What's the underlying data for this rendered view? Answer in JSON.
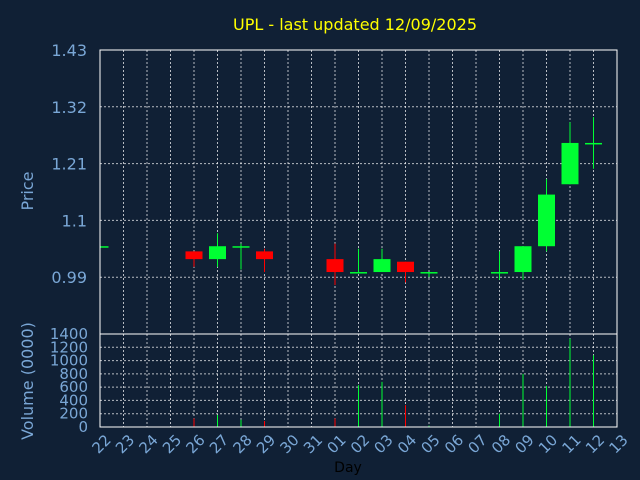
{
  "chart_data": {
    "type": "candlestick",
    "title": "UPL - last updated 12/09/2025",
    "xlabel": "Day",
    "ylabel": "Price",
    "volume_label": "Volume (0000)",
    "categories": [
      "22",
      "23",
      "24",
      "25",
      "26",
      "27",
      "28",
      "29",
      "30",
      "31",
      "01",
      "02",
      "03",
      "04",
      "05",
      "06",
      "07",
      "08",
      "09",
      "10",
      "11",
      "12",
      "13"
    ],
    "price_ticks": [
      "1.43",
      "1.32",
      "1.21",
      "1.1",
      "0.99"
    ],
    "price_tick_values": [
      1.43,
      1.32,
      1.21,
      1.1,
      0.99
    ],
    "price_range": [
      0.88,
      1.43
    ],
    "volume_ticks": [
      0,
      200,
      400,
      600,
      800,
      1000,
      1200,
      1400
    ],
    "volume_range": [
      0,
      1400
    ],
    "grid": true,
    "candles": [
      {
        "x": 0.0,
        "open": 1.05,
        "close": 1.05,
        "high": 1.05,
        "low": 1.05,
        "volume": 0
      },
      {
        "x": 4.0,
        "open": 1.04,
        "close": 1.025,
        "high": 1.04,
        "low": 1.01,
        "volume": 130
      },
      {
        "x": 5.0,
        "open": 1.025,
        "close": 1.05,
        "high": 1.075,
        "low": 1.01,
        "volume": 180
      },
      {
        "x": 6.0,
        "open": 1.05,
        "close": 1.05,
        "high": 1.055,
        "low": 1.005,
        "volume": 110
      },
      {
        "x": 7.0,
        "open": 1.04,
        "close": 1.025,
        "high": 1.045,
        "low": 1.0,
        "volume": 90
      },
      {
        "x": 10.0,
        "open": 1.025,
        "close": 1.0,
        "high": 1.055,
        "low": 0.975,
        "volume": 130
      },
      {
        "x": 11.0,
        "open": 1.0,
        "close": 1.0,
        "high": 1.045,
        "low": 1.0,
        "volume": 630
      },
      {
        "x": 12.0,
        "open": 1.0,
        "close": 1.025,
        "high": 1.045,
        "low": 1.0,
        "volume": 680
      },
      {
        "x": 13.0,
        "open": 1.02,
        "close": 1.0,
        "high": 1.02,
        "low": 0.98,
        "volume": 330
      },
      {
        "x": 14.0,
        "open": 1.0,
        "close": 1.0,
        "high": 1.0,
        "low": 0.99,
        "volume": 20
      },
      {
        "x": 17.0,
        "open": 1.0,
        "close": 1.0,
        "high": 1.04,
        "low": 0.985,
        "volume": 200
      },
      {
        "x": 18.0,
        "open": 1.0,
        "close": 1.05,
        "high": 1.05,
        "low": 0.985,
        "volume": 800
      },
      {
        "x": 19.0,
        "open": 1.05,
        "close": 1.15,
        "high": 1.18,
        "low": 1.04,
        "volume": 620
      },
      {
        "x": 20.0,
        "open": 1.17,
        "close": 1.25,
        "high": 1.29,
        "low": 1.17,
        "volume": 1330
      },
      {
        "x": 21.0,
        "open": 1.25,
        "close": 1.25,
        "high": 1.3,
        "low": 1.2,
        "volume": 1080
      }
    ],
    "colors": {
      "background": "#102035",
      "up": "#00ff33",
      "down": "#ff0000",
      "grid": "#ffffff",
      "axis_text": "#7aa7d6",
      "title": "#ffff00",
      "frame": "#ffffff"
    }
  }
}
